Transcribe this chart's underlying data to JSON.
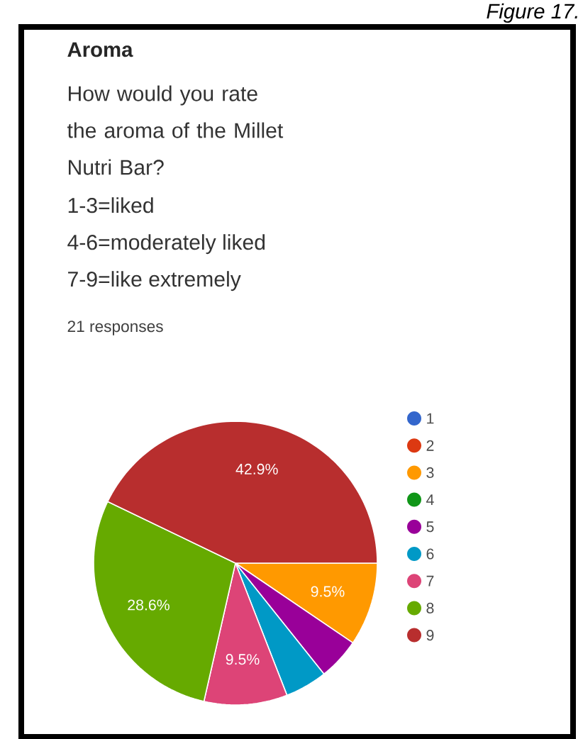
{
  "chart_data": {
    "type": "pie",
    "title": "Aroma",
    "subtitle": "How would you rate the aroma of the Millet Nutri Bar?",
    "annotations": [
      "1-3=liked",
      "4-6=moderately liked",
      "7-9=like extremely",
      "21 responses",
      "Figure 17."
    ],
    "categories": [
      "1",
      "2",
      "3",
      "4",
      "5",
      "6",
      "7",
      "8",
      "9"
    ],
    "values": [
      0,
      0,
      9.5,
      0,
      4.8,
      4.8,
      9.5,
      28.6,
      42.9
    ],
    "value_labels": [
      null,
      null,
      "9.5%",
      null,
      null,
      null,
      "9.5%",
      "28.6%",
      "42.9%"
    ],
    "colors": [
      "#3366cc",
      "#dc3912",
      "#ff9900",
      "#109618",
      "#990099",
      "#0099c6",
      "#dd4477",
      "#66aa00",
      "#b82e2e"
    ],
    "legend": "right"
  }
}
